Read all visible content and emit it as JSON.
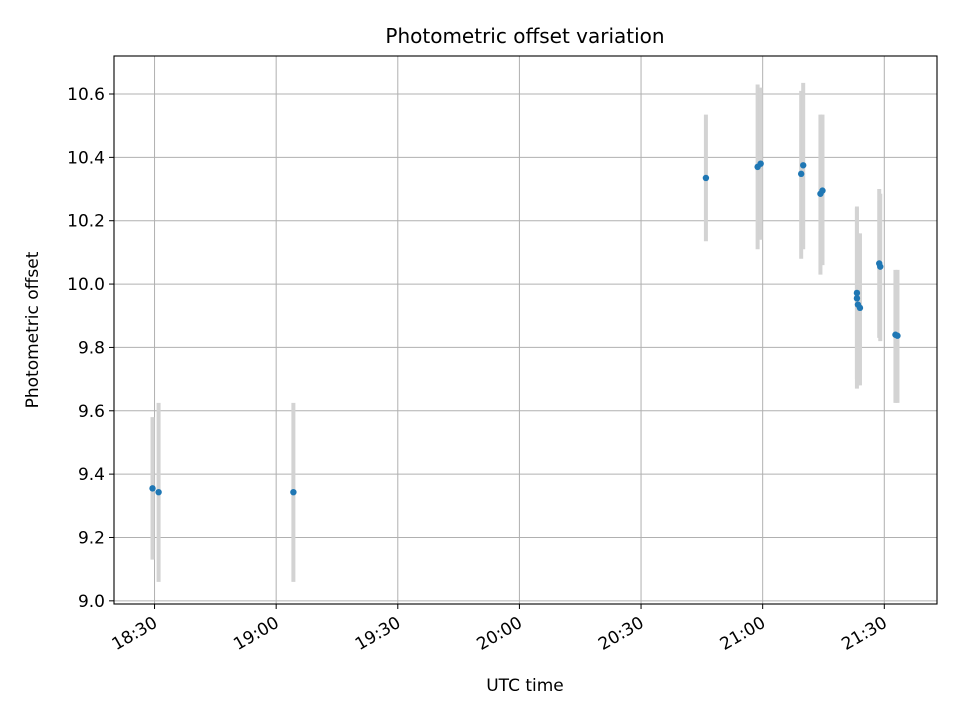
{
  "chart_data": {
    "type": "scatter",
    "title": "Photometric offset variation",
    "xlabel": "UTC time",
    "ylabel": "Photometric offset",
    "x_ticks": [
      "18:30",
      "19:00",
      "19:30",
      "20:00",
      "20:30",
      "21:00",
      "21:30"
    ],
    "x_tick_minutes": [
      1110,
      1140,
      1170,
      1200,
      1230,
      1260,
      1290
    ],
    "y_ticks": [
      "9.0",
      "9.2",
      "9.4",
      "9.6",
      "9.8",
      "10.0",
      "10.2",
      "10.4",
      "10.6"
    ],
    "y_tick_values": [
      9.0,
      9.2,
      9.4,
      9.6,
      9.8,
      10.0,
      10.2,
      10.4,
      10.6
    ],
    "xlim": [
      "18:20",
      "21:43"
    ],
    "ylim": [
      8.99,
      10.72
    ],
    "grid": true,
    "colors": {
      "points": "#1f77b4",
      "errorbars": "#d3d3d3"
    },
    "points": [
      {
        "x": "18:29:30",
        "y": 9.355,
        "ylow": 9.13,
        "yhigh": 9.58
      },
      {
        "x": "18:31:00",
        "y": 9.343,
        "ylow": 9.06,
        "yhigh": 9.625
      },
      {
        "x": "19:04:15",
        "y": 9.343,
        "ylow": 9.06,
        "yhigh": 9.625
      },
      {
        "x": "20:46:00",
        "y": 10.335,
        "ylow": 10.135,
        "yhigh": 10.535
      },
      {
        "x": "20:58:45",
        "y": 10.37,
        "ylow": 10.11,
        "yhigh": 10.63
      },
      {
        "x": "20:59:30",
        "y": 10.38,
        "ylow": 10.14,
        "yhigh": 10.62
      },
      {
        "x": "21:09:30",
        "y": 10.348,
        "ylow": 10.08,
        "yhigh": 10.61
      },
      {
        "x": "21:10:00",
        "y": 10.375,
        "ylow": 10.11,
        "yhigh": 10.635
      },
      {
        "x": "21:14:15",
        "y": 10.285,
        "ylow": 10.03,
        "yhigh": 10.535
      },
      {
        "x": "21:14:45",
        "y": 10.295,
        "ylow": 10.06,
        "yhigh": 10.535
      },
      {
        "x": "21:23:15",
        "y": 9.972,
        "ylow": 9.7,
        "yhigh": 10.245
      },
      {
        "x": "21:23:15",
        "y": 9.955,
        "ylow": 9.67,
        "yhigh": 10.24
      },
      {
        "x": "21:23:30",
        "y": 9.935,
        "ylow": 9.68,
        "yhigh": 10.16
      },
      {
        "x": "21:24:00",
        "y": 9.925,
        "ylow": 9.68,
        "yhigh": 10.16
      },
      {
        "x": "21:28:45",
        "y": 10.065,
        "ylow": 9.83,
        "yhigh": 10.3
      },
      {
        "x": "21:29:00",
        "y": 10.055,
        "ylow": 9.82,
        "yhigh": 10.285
      },
      {
        "x": "21:32:45",
        "y": 9.84,
        "ylow": 9.625,
        "yhigh": 10.045
      },
      {
        "x": "21:33:15",
        "y": 9.837,
        "ylow": 9.625,
        "yhigh": 10.045
      }
    ]
  }
}
